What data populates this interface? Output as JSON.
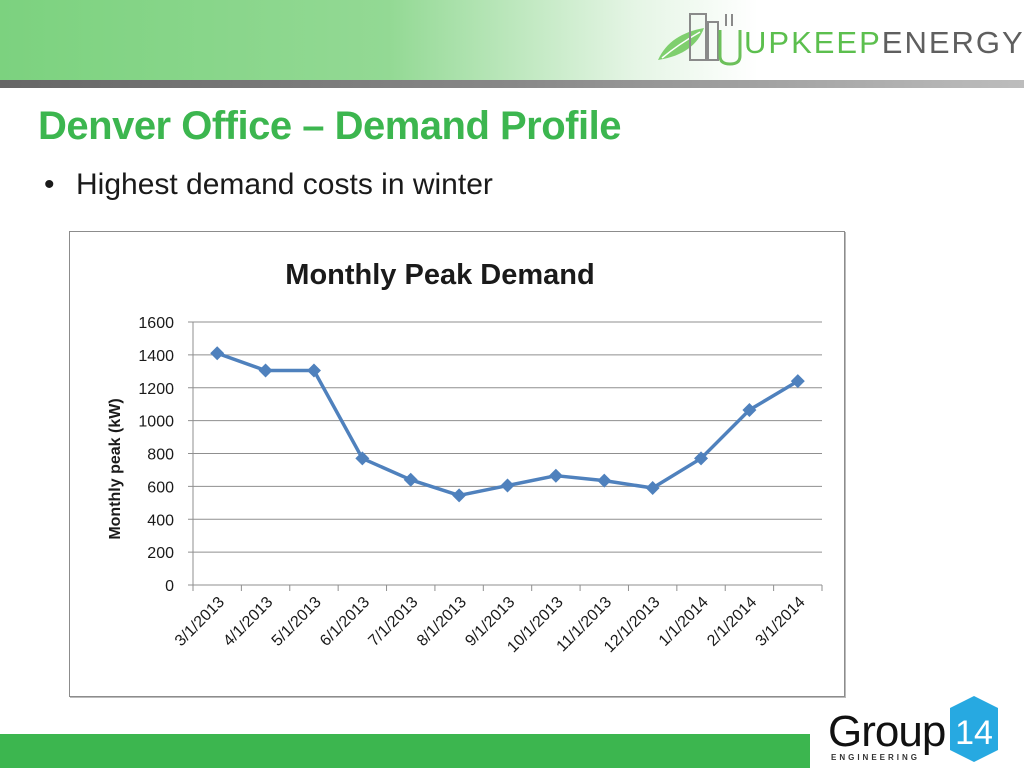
{
  "brand": {
    "name_prefix": "UPKEEP",
    "name_suffix": "ENERGY",
    "colors": {
      "primary_green": "#3cb64f",
      "dark_gray": "#595959",
      "header_green": "#7cd27f"
    }
  },
  "slide": {
    "title": "Denver Office – Demand Profile",
    "bullets": [
      "Highest demand costs in winter"
    ]
  },
  "footer_logo": {
    "word": "Group",
    "number": "14",
    "subtitle": "ENGINEERING",
    "badge_color": "#27a9e1"
  },
  "chart_data": {
    "type": "line",
    "title": "Monthly Peak Demand",
    "xlabel": "",
    "ylabel": "Monthly peak (kW)",
    "ylim": [
      0,
      1600
    ],
    "yticks": [
      0,
      200,
      400,
      600,
      800,
      1000,
      1200,
      1400,
      1600
    ],
    "categories": [
      "3/1/2013",
      "4/1/2013",
      "5/1/2013",
      "6/1/2013",
      "7/1/2013",
      "8/1/2013",
      "9/1/2013",
      "10/1/2013",
      "11/1/2013",
      "12/1/2013",
      "1/1/2014",
      "2/1/2014",
      "3/1/2014"
    ],
    "series": [
      {
        "name": "",
        "color": "#4f81bd",
        "values": [
          1410,
          1305,
          1305,
          770,
          640,
          545,
          605,
          665,
          635,
          590,
          770,
          1065,
          1240
        ]
      }
    ],
    "grid": true,
    "legend": "none",
    "marker": "diamond"
  }
}
